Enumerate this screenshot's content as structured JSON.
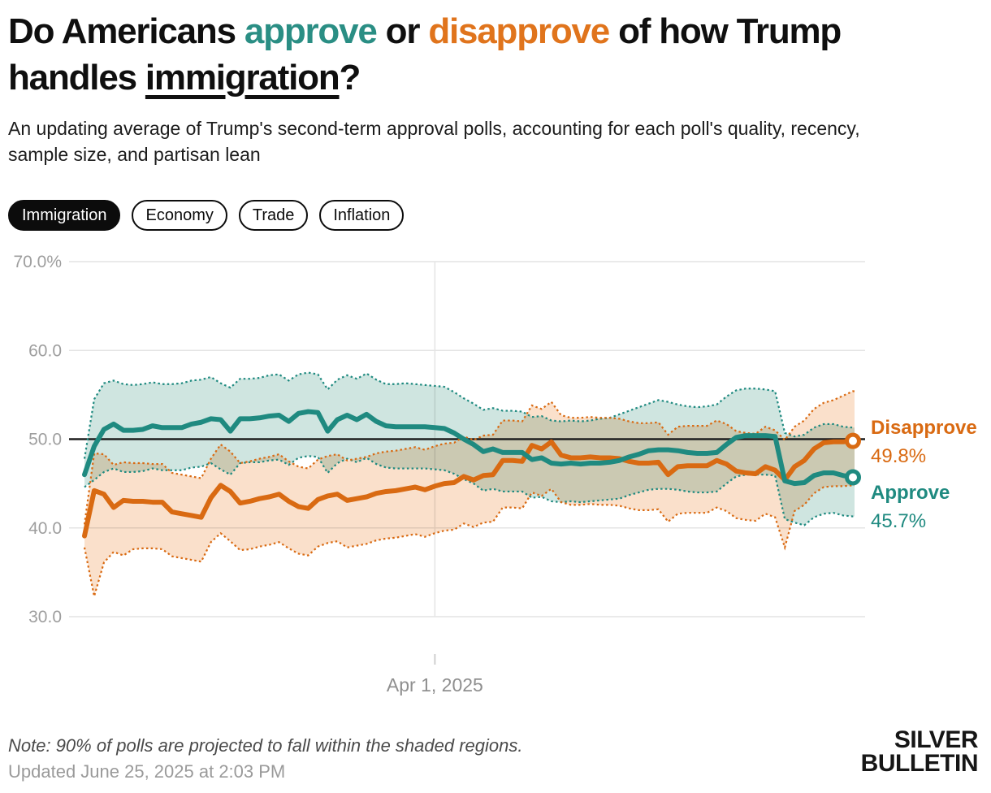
{
  "header": {
    "title_part1": "Do Americans ",
    "title_approve": "approve",
    "title_part2": " or ",
    "title_disapprove": "disapprove",
    "title_part3": " of how Trump handles ",
    "title_immigration": "immigration",
    "title_part4": "?",
    "subtitle": "An updating average of Trump's second-term approval polls, accounting for each poll's quality, recency, sample size, and partisan lean"
  },
  "tabs": [
    {
      "label": "Immigration",
      "active": true
    },
    {
      "label": "Economy",
      "active": false
    },
    {
      "label": "Trade",
      "active": false
    },
    {
      "label": "Inflation",
      "active": false
    }
  ],
  "colors": {
    "approve_line": "#1F8A80",
    "disapprove_line": "#D96A12",
    "approve_band_fill": "#CFE5E0",
    "disapprove_band_fill": "#FAE0CB",
    "grid": "#E4E4E4",
    "reference_line": "#1F1F1F",
    "axis_text": "#9E9E9E"
  },
  "chart_data": {
    "type": "line",
    "title": "Do Americans approve or disapprove of how Trump handles immigration?",
    "legend_position": "right-end-of-lines",
    "grid": true,
    "reference_line_value": 50,
    "y_axis": {
      "range": [
        30,
        70
      ],
      "ticks": [
        {
          "label": "70.0%",
          "value": 70
        },
        {
          "label": "60.0",
          "value": 60
        },
        {
          "label": "50.0",
          "value": 50
        },
        {
          "label": "40.0",
          "value": 40
        },
        {
          "label": "30.0",
          "value": 30
        }
      ]
    },
    "x_axis": {
      "tick_label": "Apr 1, 2025",
      "tick_frac": 0.456
    },
    "series": [
      {
        "name": "Approve",
        "end_label": "Approve",
        "end_value": "45.7%",
        "color": "#1F8A80",
        "band_fill": "#CFE5E0",
        "values": [
          46.0,
          49.2,
          51.1,
          51.7,
          51.0,
          51.0,
          51.1,
          51.5,
          51.3,
          51.3,
          51.3,
          51.7,
          51.9,
          52.3,
          52.2,
          50.9,
          52.3,
          52.3,
          52.4,
          52.6,
          52.7,
          52.0,
          52.9,
          53.1,
          53.0,
          50.9,
          52.2,
          52.7,
          52.2,
          52.8,
          52.0,
          51.5,
          51.4,
          51.4,
          51.4,
          51.4,
          51.3,
          51.2,
          50.7,
          50.0,
          49.4,
          48.6,
          48.9,
          48.5,
          48.5,
          48.5,
          47.7,
          47.9,
          47.3,
          47.2,
          47.3,
          47.2,
          47.3,
          47.3,
          47.4,
          47.6,
          48.0,
          48.3,
          48.7,
          48.8,
          48.8,
          48.7,
          48.5,
          48.4,
          48.4,
          48.5,
          49.4,
          50.2,
          50.4,
          50.4,
          50.4,
          50.3,
          45.3,
          45.0,
          45.1,
          45.9,
          46.2,
          46.2,
          45.9,
          45.7
        ],
        "band_upper": [
          47.8,
          54.5,
          56.3,
          56.6,
          56.2,
          56.1,
          56.2,
          56.4,
          56.2,
          56.2,
          56.3,
          56.6,
          56.7,
          57.0,
          56.3,
          55.8,
          56.8,
          56.8,
          56.9,
          57.2,
          57.3,
          56.6,
          57.3,
          57.5,
          57.3,
          55.6,
          56.7,
          57.2,
          56.8,
          57.4,
          56.7,
          56.2,
          56.2,
          56.3,
          56.2,
          56.1,
          56.0,
          55.9,
          55.3,
          54.6,
          54.0,
          53.3,
          53.5,
          53.2,
          53.2,
          53.1,
          52.5,
          52.6,
          52.1,
          52.0,
          52.1,
          52.0,
          52.1,
          52.3,
          52.4,
          52.8,
          53.2,
          53.6,
          54.0,
          54.4,
          54.2,
          53.9,
          53.7,
          53.6,
          53.7,
          53.9,
          54.8,
          55.5,
          55.7,
          55.7,
          55.6,
          55.4,
          50.7,
          50.3,
          50.5,
          51.3,
          51.7,
          51.7,
          51.4,
          51.3
        ],
        "band_lower": [
          44.6,
          45.4,
          46.3,
          46.7,
          46.3,
          46.3,
          46.4,
          46.7,
          46.5,
          46.5,
          46.5,
          46.8,
          46.9,
          47.3,
          46.6,
          46.0,
          47.3,
          47.4,
          47.4,
          47.6,
          47.7,
          47.1,
          47.9,
          48.1,
          48.0,
          46.2,
          47.3,
          47.8,
          47.4,
          47.9,
          47.2,
          46.8,
          46.7,
          46.7,
          46.7,
          46.7,
          46.6,
          46.5,
          46.1,
          45.5,
          45.0,
          44.2,
          44.4,
          44.1,
          44.1,
          44.1,
          43.4,
          43.5,
          43.0,
          42.9,
          43.0,
          42.9,
          43.0,
          43.1,
          43.2,
          43.3,
          43.7,
          44.0,
          44.3,
          44.4,
          44.4,
          44.3,
          44.1,
          44.0,
          44.0,
          44.1,
          45.0,
          45.8,
          46.0,
          46.0,
          46.0,
          45.9,
          41.0,
          40.6,
          40.3,
          41.2,
          41.6,
          41.7,
          41.4,
          41.3
        ]
      },
      {
        "name": "Disapprove",
        "end_label": "Disapprove",
        "end_value": "49.8%",
        "color": "#D96A12",
        "band_fill": "#FAE0CB",
        "values": [
          39.1,
          44.2,
          43.8,
          42.3,
          43.1,
          43.0,
          43.0,
          42.9,
          42.9,
          41.8,
          41.6,
          41.4,
          41.2,
          43.4,
          44.8,
          44.1,
          42.8,
          43.0,
          43.3,
          43.5,
          43.8,
          43.0,
          42.4,
          42.2,
          43.2,
          43.6,
          43.8,
          43.1,
          43.3,
          43.5,
          43.9,
          44.1,
          44.2,
          44.4,
          44.6,
          44.3,
          44.7,
          45.0,
          45.1,
          45.8,
          45.4,
          45.9,
          46.0,
          47.6,
          47.6,
          47.5,
          49.3,
          48.9,
          49.7,
          48.2,
          47.9,
          47.9,
          48.0,
          47.9,
          47.9,
          47.8,
          47.5,
          47.3,
          47.3,
          47.4,
          46.0,
          46.9,
          47.0,
          47.0,
          47.0,
          47.6,
          47.2,
          46.4,
          46.2,
          46.1,
          46.9,
          46.5,
          45.4,
          46.9,
          47.6,
          48.9,
          49.6,
          49.7,
          49.7,
          49.8
        ],
        "band_upper": [
          40.4,
          48.4,
          48.3,
          47.1,
          47.4,
          47.3,
          47.3,
          47.2,
          47.2,
          46.2,
          46.0,
          45.8,
          45.6,
          47.8,
          49.4,
          48.6,
          47.3,
          47.5,
          47.8,
          48.0,
          48.3,
          47.5,
          46.9,
          46.7,
          47.7,
          48.1,
          48.3,
          47.6,
          47.8,
          48.0,
          48.4,
          48.6,
          48.7,
          48.9,
          49.1,
          48.8,
          49.2,
          49.5,
          49.6,
          50.3,
          49.9,
          50.4,
          50.5,
          52.1,
          52.1,
          52.0,
          53.8,
          53.4,
          54.2,
          52.7,
          52.4,
          52.4,
          52.5,
          52.4,
          52.4,
          52.3,
          52.0,
          51.8,
          51.8,
          51.9,
          50.5,
          51.4,
          51.5,
          51.5,
          51.5,
          52.1,
          51.7,
          50.9,
          50.7,
          50.6,
          51.4,
          51.0,
          49.9,
          51.4,
          52.1,
          53.4,
          54.1,
          54.4,
          54.9,
          55.4
        ],
        "band_lower": [
          37.8,
          32.3,
          36.1,
          37.3,
          36.9,
          37.6,
          37.7,
          37.7,
          37.6,
          36.8,
          36.6,
          36.4,
          36.2,
          38.4,
          39.4,
          38.5,
          37.5,
          37.6,
          37.9,
          38.1,
          38.4,
          37.7,
          37.1,
          36.9,
          37.9,
          38.3,
          38.5,
          37.8,
          38.0,
          38.2,
          38.6,
          38.8,
          38.9,
          39.1,
          39.3,
          39.0,
          39.4,
          39.7,
          39.8,
          40.5,
          40.1,
          40.6,
          40.7,
          42.3,
          42.3,
          42.2,
          44.0,
          43.6,
          44.4,
          42.9,
          42.6,
          42.6,
          42.7,
          42.6,
          42.6,
          42.5,
          42.2,
          42.0,
          42.0,
          42.1,
          40.7,
          41.6,
          41.7,
          41.7,
          41.7,
          42.3,
          41.9,
          41.1,
          40.9,
          40.8,
          41.6,
          41.2,
          37.8,
          41.9,
          42.6,
          43.9,
          44.6,
          44.7,
          44.7,
          44.8
        ]
      }
    ]
  },
  "footer": {
    "note": "Note: 90% of polls are projected to fall within the shaded regions.",
    "updated": "Updated June 25, 2025 at 2:03 PM"
  },
  "logo": {
    "line1": "SILVER",
    "line2": "BULLETIN"
  }
}
